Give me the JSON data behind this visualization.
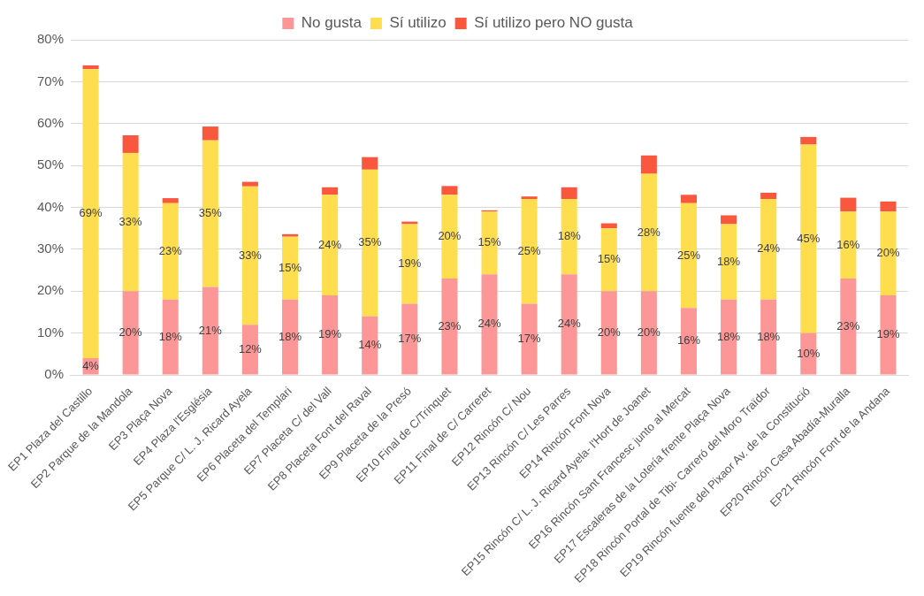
{
  "chart_data": {
    "type": "bar",
    "stacked": true,
    "categories": [
      "EP1 Plaza del Castillo",
      "EP2 Parque de la Mandola",
      "EP3 Plaça Nova",
      "EP4 Plaza l'Església",
      "EP5 Parque C/ L. J. Ricard Ayela",
      "EP6 Placeta del Templari",
      "EP7 Placeta C/ del Vall",
      "EP8 Placeta Font del Raval",
      "EP9 Placeta de la Presó",
      "EP10 Final de C/Trinquet",
      "EP11 Final de C/ Carreret",
      "EP12 Rincón C/ Nou",
      "EP13 Rincón C/ Les Parres",
      "EP14 Rincón Font Nova",
      "EP15 Rincón C/ L. J. Ricard Ayela- l'Hort de Joanet",
      "EP16 Rincón Sant Francesc junto al Mercat",
      "EP17 Escaleras de la Lotería frente Plaça Nova",
      "EP18 Rincón Portal de Tibi- Carreró del Moro Traïdor",
      "EP19 Rincón fuente del Pixaor Av. de la Constitució",
      "EP20 Rincón Casa Abadía-Muralla",
      "EP21 Rincón Font de la Andana"
    ],
    "series": [
      {
        "name": "No gusta",
        "color": "#fd9697",
        "values": [
          4,
          20,
          18,
          21,
          12,
          18,
          19,
          14,
          17,
          23,
          24,
          17,
          24,
          20,
          20,
          16,
          18,
          18,
          10,
          23,
          19
        ],
        "value_labels": [
          "4%",
          "20%",
          "18%",
          "21%",
          "12%",
          "18%",
          "19%",
          "14%",
          "17%",
          "23%",
          "24%",
          "17%",
          "24%",
          "20%",
          "20%",
          "16%",
          "18%",
          "18%",
          "10%",
          "23%",
          "19%"
        ]
      },
      {
        "name": "Sí utilizo",
        "color": "#fedd4f",
        "values": [
          69,
          33,
          23,
          35,
          33,
          15,
          24,
          35,
          19,
          20,
          15,
          25,
          18,
          15,
          28,
          25,
          18,
          24,
          45,
          16,
          20
        ],
        "value_labels": [
          "69%",
          "33%",
          "23%",
          "35%",
          "33%",
          "15%",
          "24%",
          "35%",
          "19%",
          "20%",
          "15%",
          "25%",
          "18%",
          "15%",
          "28%",
          "25%",
          "18%",
          "24%",
          "45%",
          "16%",
          "20%"
        ]
      },
      {
        "name": "Sí utilizo pero NO gusta",
        "color": "#f9573e",
        "values": [
          0.9,
          4.2,
          1.2,
          3.3,
          1.1,
          0.6,
          1.8,
          3.0,
          0.6,
          2.1,
          0.3,
          0.6,
          2.8,
          1.2,
          4.4,
          2.0,
          2.1,
          1.5,
          1.8,
          3.3,
          2.4
        ]
      }
    ],
    "ylim": [
      0,
      80
    ],
    "yticks": [
      {
        "value": 0,
        "label": "0%"
      },
      {
        "value": 10,
        "label": "10%"
      },
      {
        "value": 20,
        "label": "20%"
      },
      {
        "value": 30,
        "label": "30%"
      },
      {
        "value": 40,
        "label": "40%"
      },
      {
        "value": 50,
        "label": "50%"
      },
      {
        "value": 60,
        "label": "60%"
      },
      {
        "value": 70,
        "label": "70%"
      },
      {
        "value": 80,
        "label": "80%"
      }
    ],
    "grid": "y",
    "legend": "top"
  }
}
